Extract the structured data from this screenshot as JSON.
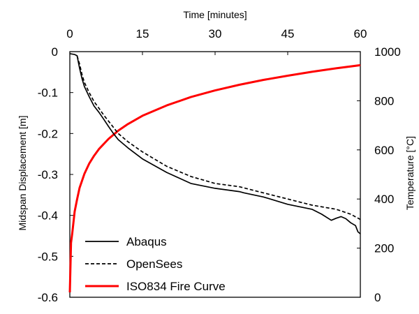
{
  "chart_data": {
    "type": "line",
    "title": "",
    "xlabel": "Time [minutes]",
    "ylabel": "Midspan Displacement [m]",
    "y2label": "Temperature [°C]",
    "xlim": [
      0,
      60
    ],
    "ylim": [
      -0.6,
      0
    ],
    "y2lim": [
      0,
      1000
    ],
    "x_ticks": [
      "0",
      "15",
      "30",
      "45",
      "60"
    ],
    "y_ticks": [
      "0",
      "-0.1",
      "-0.2",
      "-0.3",
      "-0.4",
      "-0.5",
      "-0.6"
    ],
    "y2_ticks": [
      "1000",
      "800",
      "600",
      "400",
      "200",
      "0"
    ],
    "grid": false,
    "legend_position": "bottom-left",
    "series": [
      {
        "name": "Abaqus",
        "axis": "left",
        "color": "#000000",
        "style": "solid",
        "x": [
          0,
          1,
          1.5,
          2,
          2.5,
          3,
          4,
          5,
          6,
          7,
          8,
          9,
          10,
          12,
          15,
          20,
          25,
          30,
          35,
          36,
          40,
          45,
          50,
          52,
          54,
          55,
          56,
          57,
          58,
          59,
          59.5,
          60
        ],
        "y": [
          -0.005,
          -0.007,
          -0.01,
          -0.04,
          -0.065,
          -0.085,
          -0.11,
          -0.133,
          -0.148,
          -0.165,
          -0.183,
          -0.2,
          -0.215,
          -0.235,
          -0.262,
          -0.295,
          -0.322,
          -0.334,
          -0.342,
          -0.345,
          -0.355,
          -0.373,
          -0.385,
          -0.397,
          -0.412,
          -0.407,
          -0.403,
          -0.408,
          -0.418,
          -0.425,
          -0.44,
          -0.445
        ]
      },
      {
        "name": "OpenSees",
        "axis": "left",
        "color": "#000000",
        "style": "dashed",
        "x": [
          1.5,
          2,
          2.5,
          3,
          4,
          5,
          6,
          7,
          8,
          9,
          10,
          12,
          15,
          20,
          25,
          30,
          35,
          40,
          45,
          50,
          55,
          58,
          60
        ],
        "y": [
          -0.01,
          -0.03,
          -0.055,
          -0.075,
          -0.1,
          -0.122,
          -0.138,
          -0.155,
          -0.17,
          -0.185,
          -0.2,
          -0.22,
          -0.245,
          -0.28,
          -0.305,
          -0.322,
          -0.33,
          -0.345,
          -0.36,
          -0.375,
          -0.385,
          -0.397,
          -0.41
        ]
      },
      {
        "name": "ISO834 Fire Curve",
        "axis": "right",
        "color": "#ff0000",
        "style": "solid",
        "x": [
          0,
          0.25,
          0.5,
          1,
          1.5,
          2,
          3,
          4,
          5,
          6,
          8,
          10,
          12,
          15,
          20,
          25,
          30,
          35,
          40,
          45,
          50,
          55,
          60
        ],
        "y": [
          20,
          221,
          261,
          349,
          399,
          445,
          502,
          544,
          576,
          603,
          645,
          678,
          705,
          739,
          781,
          815,
          842,
          865,
          885,
          902,
          918,
          932,
          945
        ]
      }
    ]
  }
}
